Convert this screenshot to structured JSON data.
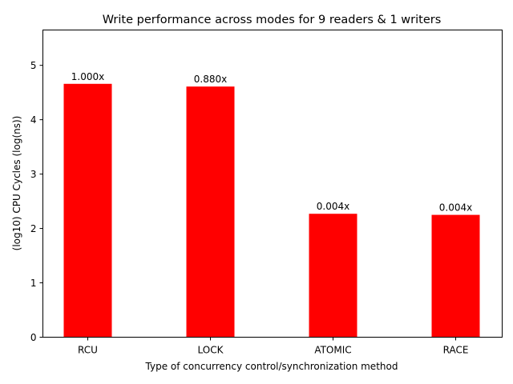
{
  "chart_data": {
    "type": "bar",
    "title": "Write performance across modes for 9 readers & 1 writers",
    "xlabel": "Type of concurrency control/synchronization method",
    "ylabel": "(log10) CPU Cycles (log(ns))",
    "categories": [
      "RCU",
      "LOCK",
      "ATOMIC",
      "RACE"
    ],
    "values": [
      4.66,
      4.61,
      2.27,
      2.25
    ],
    "bar_labels": [
      "1.000x",
      "0.880x",
      "0.004x",
      "0.004x"
    ],
    "ylim": [
      0,
      5.65
    ],
    "yticks": [
      0,
      1,
      2,
      3,
      4,
      5
    ],
    "grid": false,
    "legend": "none",
    "bar_color": "#ff0000"
  }
}
